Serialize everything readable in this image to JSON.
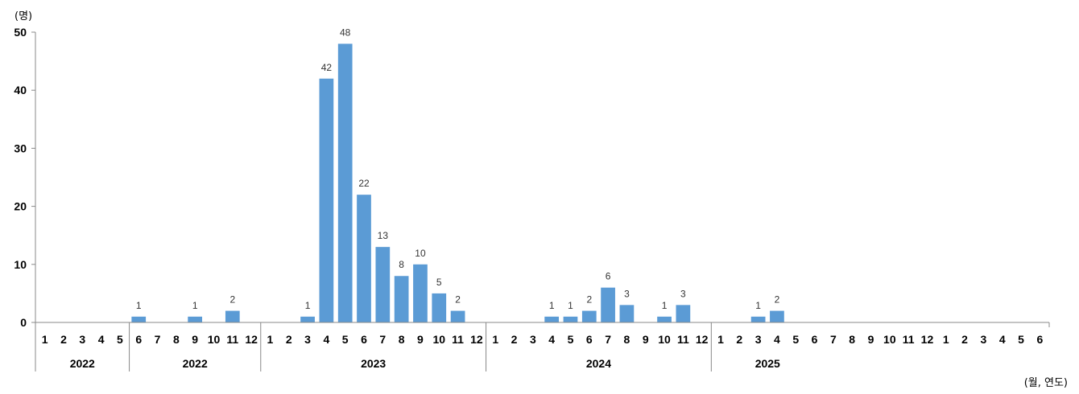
{
  "chart_data": {
    "type": "bar",
    "y_unit_label": "(명)",
    "x_unit_label": "(월, 연도)",
    "ylim": [
      0,
      50
    ],
    "yticks": [
      0,
      10,
      20,
      30,
      40,
      50
    ],
    "bar_color": "#5b9bd5",
    "grid": false,
    "months": [
      "1",
      "2",
      "3",
      "4",
      "5",
      "6",
      "7",
      "8",
      "9",
      "10",
      "11",
      "12",
      "1",
      "2",
      "3",
      "4",
      "5",
      "6",
      "7",
      "8",
      "9",
      "10",
      "11",
      "12",
      "1",
      "2",
      "3",
      "4",
      "5",
      "6",
      "7",
      "8",
      "9",
      "10",
      "11",
      "12",
      "1",
      "2",
      "3",
      "4",
      "5",
      "6",
      "7",
      "8",
      "9",
      "10",
      "11",
      "12",
      "1",
      "2",
      "3",
      "4",
      "5",
      "6"
    ],
    "values": [
      0,
      0,
      0,
      0,
      0,
      1,
      0,
      0,
      1,
      0,
      2,
      0,
      0,
      0,
      1,
      42,
      48,
      22,
      13,
      8,
      10,
      5,
      2,
      0,
      0,
      0,
      0,
      1,
      1,
      2,
      6,
      3,
      0,
      1,
      3,
      0,
      0,
      0,
      1,
      2,
      0,
      0,
      0,
      0,
      0,
      0,
      0,
      0,
      0,
      0,
      0,
      0,
      0,
      0
    ],
    "show_labels": [
      false,
      false,
      false,
      false,
      false,
      true,
      false,
      false,
      true,
      false,
      true,
      false,
      false,
      false,
      true,
      true,
      true,
      true,
      true,
      true,
      true,
      true,
      true,
      false,
      false,
      false,
      false,
      true,
      true,
      true,
      true,
      true,
      false,
      true,
      true,
      false,
      false,
      false,
      true,
      true,
      false,
      false,
      false,
      false,
      false,
      false,
      false,
      false,
      false,
      false,
      false,
      false,
      false,
      false
    ],
    "groups": [
      {
        "label": "2022",
        "start": 0,
        "count": 5
      },
      {
        "label": "2022",
        "start": 5,
        "count": 7
      },
      {
        "label": "2023",
        "start": 12,
        "count": 12
      },
      {
        "label": "2024",
        "start": 24,
        "count": 12
      },
      {
        "label": "2025",
        "start": 36,
        "count": 6
      }
    ]
  }
}
